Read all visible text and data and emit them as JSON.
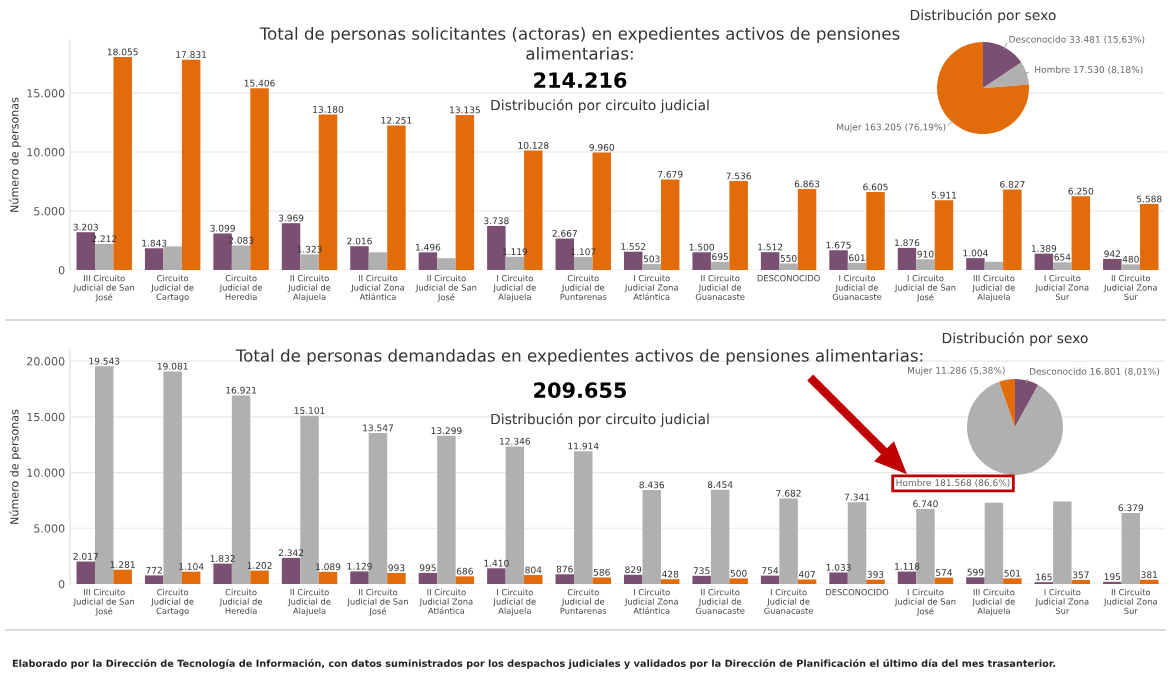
{
  "chart_data": [
    {
      "type": "bar",
      "title": "Total de personas solicitantes (actoras) en expedientes activos de pensiones alimentarias:",
      "subtitle": "Distribución por circuito judicial",
      "ylabel": "Número de personas",
      "annotations": [
        "214.216"
      ],
      "categories": [
        "III Circuito Judicial de San José",
        "Circuito Judicial de Cartago",
        "Circuito Judicial de Heredia",
        "II Circuito Judicial de Alajuela",
        "II Circuito Judicial Zona Atlántica",
        "II Circuito Judicial de San José",
        "I Circuito Judicial de Alajuela",
        "Circuito Judicial de Puntarenas",
        "I Circuito Judicial Zona Atlántica",
        "II Circuito Judicial de Guanacaste",
        "DESCONOCIDO",
        "I Circuito Judicial de Guanacaste",
        "I Circuito Judicial de San José",
        "III Circuito Judicial de Alajuela",
        "I Circuito Judicial Zona Sur",
        "II Circuito Judicial Zona Sur"
      ],
      "series": [
        {
          "color": "#7b4f72",
          "values": [
            3203,
            1843,
            3099,
            3969,
            2016,
            1496,
            3738,
            2667,
            1552,
            1500,
            1512,
            1675,
            1876,
            1004,
            1389,
            942
          ],
          "value_labels": [
            "3.203",
            "1.843",
            "3.099",
            "3.969",
            "2.016",
            "1.496",
            "3.738",
            "2.667",
            "1.552",
            "1.500",
            "1.512",
            "1.675",
            "1.876",
            "1.004",
            "1.389",
            "942"
          ]
        },
        {
          "color": "#b0b0b0",
          "values": [
            2212,
            2000,
            2083,
            1323,
            1500,
            1000,
            1119,
            1107,
            503,
            695,
            550,
            601,
            910,
            700,
            654,
            480
          ],
          "value_labels": [
            "2.212",
            null,
            "2.083",
            "1.323",
            null,
            null,
            "1.119",
            "1.107",
            "503",
            "695",
            "550",
            "601",
            "910",
            null,
            "654",
            "480"
          ]
        },
        {
          "color": "#e36c0a",
          "values": [
            18055,
            17831,
            15406,
            13180,
            12251,
            13135,
            10128,
            9960,
            7679,
            7536,
            6863,
            6605,
            5911,
            6827,
            6250,
            5588
          ],
          "value_labels": [
            "18.055",
            "17.831",
            "15.406",
            "13.180",
            "12.251",
            "13.135",
            "10.128",
            "9.960",
            "7.679",
            "7.536",
            "6.863",
            "6.605",
            "5.911",
            "6.827",
            "6.250",
            "5.588"
          ]
        }
      ],
      "ylim": [
        0,
        19500
      ],
      "yticks": [
        {
          "value": 0,
          "label": "0"
        },
        {
          "value": 5000,
          "label": "5.000"
        },
        {
          "value": 10000,
          "label": "10.000"
        },
        {
          "value": 15000,
          "label": "15.000"
        }
      ],
      "grid": "y",
      "legend": false
    },
    {
      "type": "pie",
      "title": "Distribución por sexo",
      "categories": [
        "Desconocido",
        "Hombre",
        "Mujer"
      ],
      "values": [
        33481,
        17530,
        163205
      ],
      "value_labels": [
        "33.481 (15,63%)",
        "17.530 (8,18%)",
        "163.205 (76,19%)"
      ],
      "colors": [
        "#7b4f72",
        "#b0b0b0",
        "#e36c0a"
      ],
      "legend": false
    },
    {
      "type": "bar",
      "title": "Total de personas demandadas en expedientes activos de pensiones alimentarias:",
      "subtitle": "Distribución por circuito judicial",
      "ylabel": "Número de personas",
      "annotations": [
        "209.655"
      ],
      "categories": [
        "III Circuito Judicial de San José",
        "Circuito Judicial de Cartago",
        "Circuito Judicial de Heredia",
        "II Circuito Judicial de Alajuela",
        "II Circuito Judicial de San José",
        "II Circuito Judicial Zona Atlántica",
        "I Circuito Judicial de Alajuela",
        "Circuito Judicial de Puntarenas",
        "I Circuito Judicial Zona Atlántica",
        "II Circuito Judicial de Guanacaste",
        "I Circuito Judicial de Guanacaste",
        "DESCONOCIDO",
        "I Circuito Judicial de San José",
        "III Circuito Judicial de Alajuela",
        "I Circuito Judicial Zona Sur",
        "II Circuito Judicial Zona Sur"
      ],
      "series": [
        {
          "color": "#7b4f72",
          "values": [
            2017,
            772,
            1832,
            2342,
            1129,
            995,
            1410,
            876,
            829,
            735,
            754,
            1033,
            1118,
            599,
            165,
            195
          ],
          "value_labels": [
            "2.017",
            "772",
            "1.832",
            "2.342",
            "1.129",
            "995",
            "1.410",
            "876",
            "829",
            "735",
            "754",
            "1.033",
            "1.118",
            "599",
            "165",
            "195"
          ]
        },
        {
          "color": "#b0b0b0",
          "values": [
            19543,
            19081,
            16921,
            15101,
            13547,
            13299,
            12346,
            11914,
            8436,
            8454,
            7682,
            7341,
            6740,
            7300,
            7400,
            6379
          ],
          "value_labels": [
            "19.543",
            "19.081",
            "16.921",
            "15.101",
            "13.547",
            "13.299",
            "12.346",
            "11.914",
            "8.436",
            "8.454",
            "7.682",
            "7.341",
            "6.740",
            null,
            null,
            "6.379"
          ]
        },
        {
          "color": "#e36c0a",
          "values": [
            1281,
            1104,
            1202,
            1089,
            993,
            686,
            804,
            586,
            428,
            500,
            407,
            393,
            574,
            501,
            357,
            381
          ],
          "value_labels": [
            "1.281",
            "1.104",
            "1.202",
            "1.089",
            "993",
            "686",
            "804",
            "586",
            "428",
            "500",
            "407",
            "393",
            "574",
            "501",
            "357",
            "381"
          ]
        }
      ],
      "ylim": [
        0,
        21000
      ],
      "yticks": [
        {
          "value": 0,
          "label": "0"
        },
        {
          "value": 5000,
          "label": "5.000"
        },
        {
          "value": 10000,
          "label": "10.000"
        },
        {
          "value": 15000,
          "label": "15.000"
        },
        {
          "value": 20000,
          "label": "20.000"
        }
      ],
      "grid": "y",
      "legend": false
    },
    {
      "type": "pie",
      "title": "Distribución por sexo",
      "categories": [
        "Desconocido",
        "Hombre",
        "Mujer"
      ],
      "values": [
        16801,
        181568,
        11286
      ],
      "value_labels": [
        "16.801 (8,01%)",
        "181.568 (86,6%)",
        "11.286 (5,38%)"
      ],
      "colors": [
        "#7b4f72",
        "#b0b0b0",
        "#e36c0a"
      ],
      "legend": false,
      "annotations": [
        "Elaborado por la Dirección de Tecnología de Información, con datos suministrados por los despachos judiciales y validados por la Dirección de Planificación el último día del mes trasanterior."
      ]
    }
  ]
}
